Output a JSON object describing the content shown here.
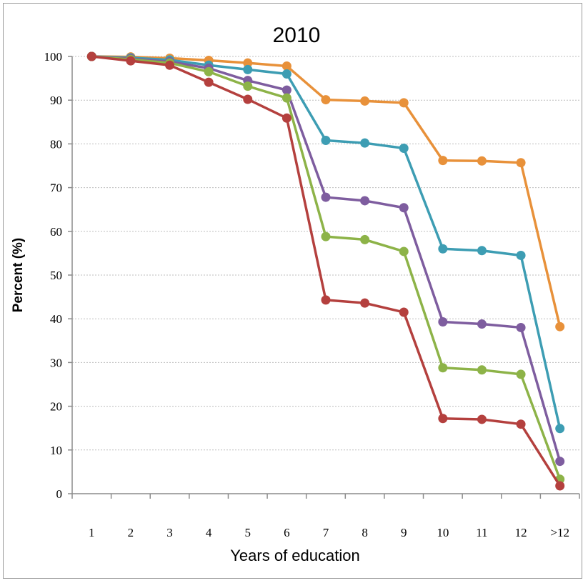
{
  "chart_data": {
    "type": "line",
    "title": "2010",
    "xlabel": "Years of education",
    "ylabel": "Percent (%)",
    "categories": [
      "1",
      "2",
      "3",
      "4",
      "5",
      "6",
      "7",
      "8",
      "9",
      "10",
      "11",
      "12",
      ">12"
    ],
    "ylim": [
      0,
      100
    ],
    "yticks": [
      0,
      10,
      20,
      30,
      40,
      50,
      60,
      70,
      80,
      90,
      100
    ],
    "grid": true,
    "legend": "none",
    "series": [
      {
        "color": "#E8913A",
        "values": [
          100,
          99.9,
          99.6,
          99.1,
          98.5,
          97.8,
          90.1,
          89.8,
          89.4,
          76.2,
          76.1,
          75.7,
          38.2
        ]
      },
      {
        "color": "#3D9DB3",
        "values": [
          100,
          99.7,
          99.2,
          98.0,
          97.0,
          96.0,
          80.8,
          80.2,
          79.0,
          56.0,
          55.6,
          54.5,
          14.9
        ]
      },
      {
        "color": "#7E5D9F",
        "values": [
          100,
          99.5,
          98.8,
          97.3,
          94.5,
          92.3,
          67.8,
          67.0,
          65.4,
          39.3,
          38.8,
          38.0,
          7.4
        ]
      },
      {
        "color": "#8DB348",
        "values": [
          100,
          99.3,
          98.5,
          96.5,
          93.2,
          90.5,
          58.8,
          58.1,
          55.4,
          28.8,
          28.3,
          27.3,
          3.3
        ]
      },
      {
        "color": "#B4403E",
        "values": [
          100,
          99.0,
          98.0,
          94.1,
          90.2,
          85.9,
          44.3,
          43.6,
          41.5,
          17.2,
          17.0,
          15.9,
          1.8
        ]
      }
    ]
  }
}
